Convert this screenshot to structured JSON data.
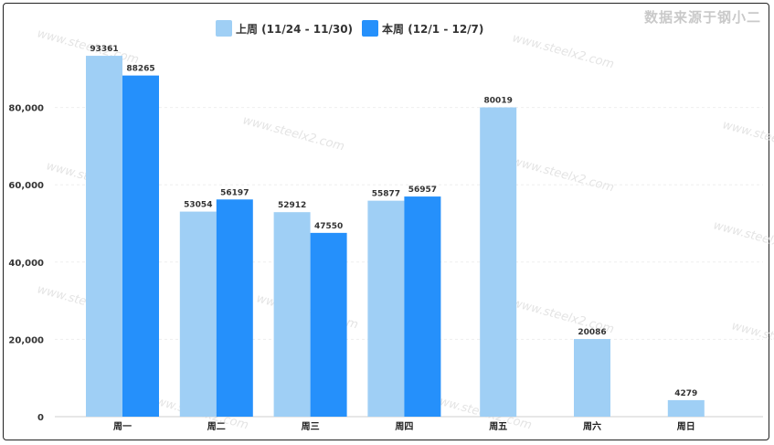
{
  "source_note": "数据来源于钢小二",
  "colors": {
    "last_week": "#9fcff5",
    "this_week": "#2590fb"
  },
  "chart_data": {
    "type": "bar",
    "categories": [
      "周一",
      "周二",
      "周三",
      "周四",
      "周五",
      "周六",
      "周日"
    ],
    "series": [
      {
        "name": "上周 (11/24 - 11/30)",
        "values": [
          93361,
          53054,
          52912,
          55877,
          80019,
          20086,
          4279
        ]
      },
      {
        "name": "本周 (12/1 - 12/7)",
        "values": [
          88265,
          56197,
          47550,
          56957,
          null,
          null,
          null
        ]
      }
    ],
    "yticks": [
      "0",
      "20,000",
      "40,000",
      "60,000",
      "80,000"
    ],
    "ylim": [
      0,
      100000
    ],
    "grid": true,
    "legend": "top-center"
  }
}
